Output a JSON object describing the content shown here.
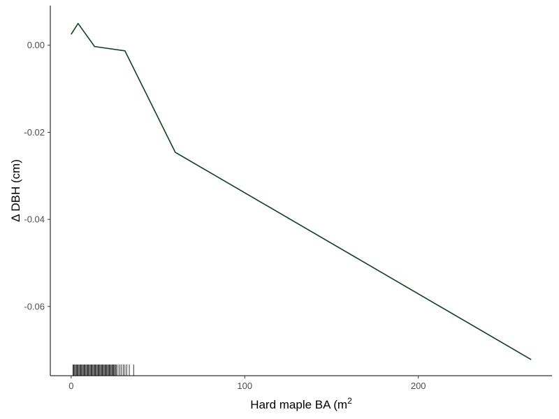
{
  "chart_data": {
    "type": "line",
    "xlabel": "Hard maple BA (m",
    "xlabel_superscript": "2",
    "ylabel": "Δ DBH (cm)",
    "xlim": [
      -12,
      277
    ],
    "ylim": [
      -0.0759,
      0.0091
    ],
    "x_ticks": [
      {
        "value": 0,
        "label": "0"
      },
      {
        "value": 100,
        "label": "100"
      },
      {
        "value": 200,
        "label": "200"
      }
    ],
    "y_ticks": [
      {
        "value": 0.0,
        "label": "0.00"
      },
      {
        "value": -0.02,
        "label": "-0.02"
      },
      {
        "value": -0.04,
        "label": "-0.04"
      },
      {
        "value": -0.06,
        "label": "-0.06"
      }
    ],
    "series": [
      {
        "color": "#123f24",
        "x": [
          0,
          4,
          13.5,
          31,
          60,
          265
        ],
        "y": [
          0.0025,
          0.005,
          -0.0003,
          -0.0013,
          -0.0246,
          -0.0722
        ]
      }
    ],
    "rug": {
      "color": "#000000",
      "x": [
        1,
        1.5,
        2,
        2.5,
        3,
        3.5,
        4,
        4.5,
        5,
        5.5,
        6,
        6.5,
        7,
        7.5,
        8,
        8.5,
        9,
        9.5,
        10,
        10.5,
        11,
        11.5,
        12,
        12.5,
        13,
        13.5,
        14,
        14.5,
        15,
        15.5,
        16,
        16.5,
        17,
        17.5,
        18,
        18.5,
        19,
        19.5,
        20,
        20.5,
        21,
        21.5,
        22,
        22.5,
        23,
        23.5,
        24,
        24.5,
        25,
        25.5,
        26,
        27,
        28,
        29,
        30,
        31,
        32,
        33.5,
        36
      ]
    },
    "grid": false,
    "legend": "none"
  }
}
